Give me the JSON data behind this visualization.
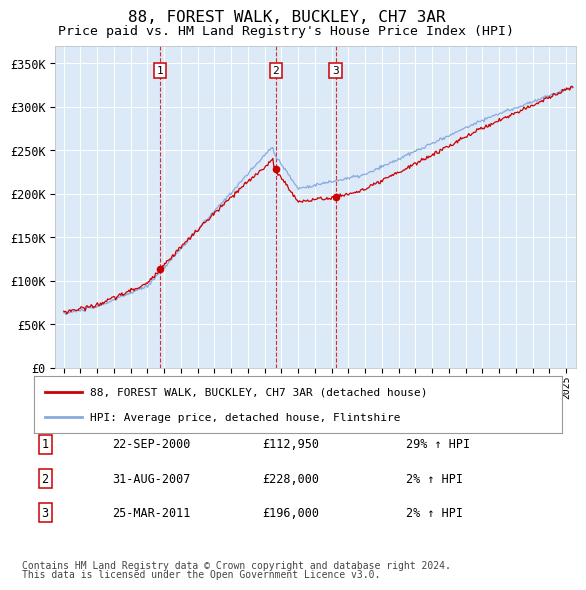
{
  "title": "88, FOREST WALK, BUCKLEY, CH7 3AR",
  "subtitle": "Price paid vs. HM Land Registry's House Price Index (HPI)",
  "ylabel_ticks": [
    "£0",
    "£50K",
    "£100K",
    "£150K",
    "£200K",
    "£250K",
    "£300K",
    "£350K"
  ],
  "ytick_values": [
    0,
    50000,
    100000,
    150000,
    200000,
    250000,
    300000,
    350000
  ],
  "ylim": [
    0,
    370000
  ],
  "xlim_start": 1994.5,
  "xlim_end": 2025.6,
  "plot_bg_color": "#dce9f7",
  "grid_color": "#ffffff",
  "sale_color": "#cc0000",
  "hpi_color": "#88aadd",
  "sales": [
    {
      "num": 1,
      "date_num": 2000.73,
      "price": 112950
    },
    {
      "num": 2,
      "date_num": 2007.66,
      "price": 228000
    },
    {
      "num": 3,
      "date_num": 2011.23,
      "price": 196000
    }
  ],
  "footer1": "Contains HM Land Registry data © Crown copyright and database right 2024.",
  "footer2": "This data is licensed under the Open Government Licence v3.0.",
  "legend_entries": [
    "88, FOREST WALK, BUCKLEY, CH7 3AR (detached house)",
    "HPI: Average price, detached house, Flintshire"
  ],
  "table_rows": [
    [
      "1",
      "22-SEP-2000",
      "£112,950",
      "29% ↑ HPI"
    ],
    [
      "2",
      "31-AUG-2007",
      "£228,000",
      "2% ↑ HPI"
    ],
    [
      "3",
      "25-MAR-2011",
      "£196,000",
      "2% ↑ HPI"
    ]
  ]
}
